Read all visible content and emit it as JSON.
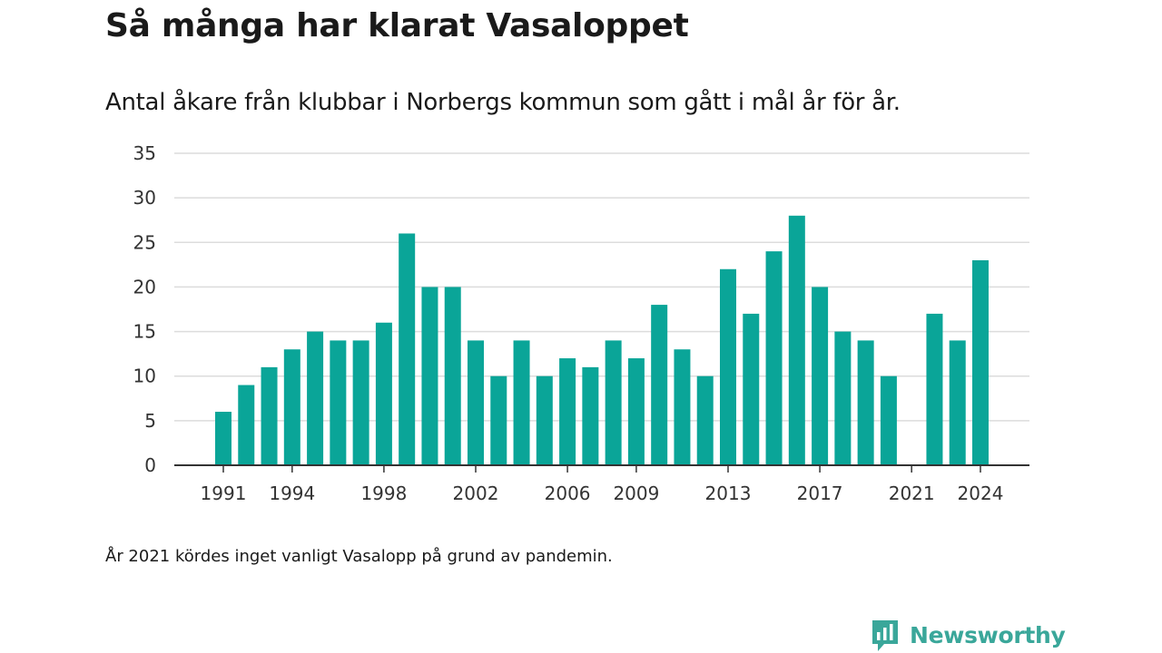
{
  "header": {
    "title": "Så många har klarat Vasaloppet",
    "subtitle": "Antal åkare från klubbar i Norbergs kommun som gått i mål år för år."
  },
  "footer": {
    "note": "År 2021 kördes inget vanligt Vasalopp på grund av pandemin.",
    "brand": "Newsworthy",
    "brand_icon": "newsworthy-logo-icon"
  },
  "chart_data": {
    "type": "bar",
    "title": "Så många har klarat Vasaloppet",
    "subtitle": "Antal åkare från klubbar i Norbergs kommun som gått i mål år för år.",
    "xlabel": "",
    "ylabel": "",
    "ylim": [
      0,
      35
    ],
    "yticks": [
      0,
      5,
      10,
      15,
      20,
      25,
      30,
      35
    ],
    "xtick_labels": [
      "1991",
      "1994",
      "1998",
      "2002",
      "2006",
      "2009",
      "2013",
      "2017",
      "2021",
      "2024"
    ],
    "grid": true,
    "bar_color": "#0aa598",
    "categories": [
      1991,
      1992,
      1993,
      1994,
      1995,
      1996,
      1997,
      1998,
      1999,
      2000,
      2001,
      2002,
      2003,
      2004,
      2005,
      2006,
      2007,
      2008,
      2009,
      2010,
      2011,
      2012,
      2013,
      2014,
      2015,
      2016,
      2017,
      2018,
      2019,
      2020,
      2021,
      2022,
      2023,
      2024
    ],
    "values": [
      6,
      9,
      11,
      13,
      15,
      14,
      14,
      16,
      26,
      20,
      20,
      14,
      10,
      14,
      10,
      12,
      11,
      14,
      12,
      18,
      13,
      10,
      22,
      17,
      24,
      28,
      20,
      15,
      14,
      10,
      0,
      17,
      14,
      23
    ]
  }
}
